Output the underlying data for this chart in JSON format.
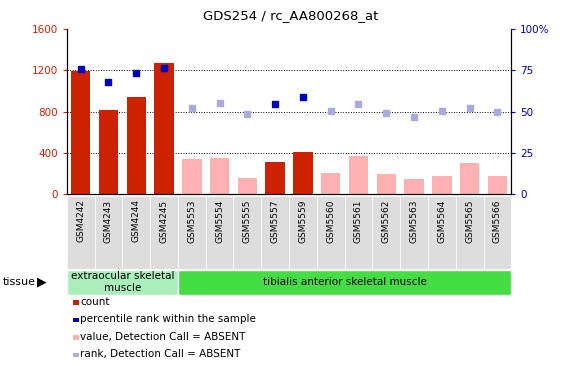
{
  "title": "GDS254 / rc_AA800268_at",
  "categories": [
    "GSM4242",
    "GSM4243",
    "GSM4244",
    "GSM4245",
    "GSM5553",
    "GSM5554",
    "GSM5555",
    "GSM5557",
    "GSM5559",
    "GSM5560",
    "GSM5561",
    "GSM5562",
    "GSM5563",
    "GSM5564",
    "GSM5565",
    "GSM5566"
  ],
  "bar_values": [
    1190,
    820,
    940,
    1270,
    null,
    null,
    null,
    310,
    410,
    null,
    null,
    null,
    null,
    null,
    null,
    null
  ],
  "bar_absent_values": [
    null,
    null,
    null,
    null,
    340,
    350,
    155,
    null,
    null,
    205,
    370,
    195,
    145,
    175,
    300,
    175
  ],
  "dot_values_pct": [
    75.6,
    68.1,
    73.4,
    76.3,
    null,
    null,
    null,
    54.4,
    58.8,
    null,
    null,
    null,
    null,
    null,
    null,
    null
  ],
  "dot_absent_pct": [
    null,
    null,
    null,
    null,
    52.5,
    55.0,
    48.4,
    null,
    null,
    50.6,
    54.7,
    49.1,
    46.9,
    50.6,
    52.5,
    50.0
  ],
  "bar_color": "#cc2200",
  "bar_absent_color": "#ffb0b0",
  "dot_color": "#0000bb",
  "dot_absent_color": "#aaaadd",
  "ylim_left": [
    0,
    1600
  ],
  "ylim_right": [
    0,
    100
  ],
  "yticks_left": [
    0,
    400,
    800,
    1200,
    1600
  ],
  "yticks_right": [
    0,
    25,
    50,
    75,
    100
  ],
  "ytick_labels_right": [
    "0",
    "25",
    "50",
    "75",
    "100%"
  ],
  "group1_label": "extraocular skeletal\nmuscle",
  "group2_label": "tibialis anterior skeletal muscle",
  "group1_count": 4,
  "group2_count": 12,
  "tissue_label": "tissue",
  "tick_color_left": "#cc2200",
  "tick_color_right": "#0000bb",
  "grid_dotted_at": [
    400,
    800,
    1200
  ],
  "legend_items": [
    {
      "label": "count",
      "color": "#cc2200",
      "type": "square"
    },
    {
      "label": "percentile rank within the sample",
      "color": "#0000bb",
      "type": "square"
    },
    {
      "label": "value, Detection Call = ABSENT",
      "color": "#ffb0b0",
      "type": "square"
    },
    {
      "label": "rank, Detection Call = ABSENT",
      "color": "#aaaadd",
      "type": "square"
    }
  ],
  "group1_color": "#aaeebb",
  "group2_color": "#44dd44",
  "xtick_bg_color": "#dddddd"
}
